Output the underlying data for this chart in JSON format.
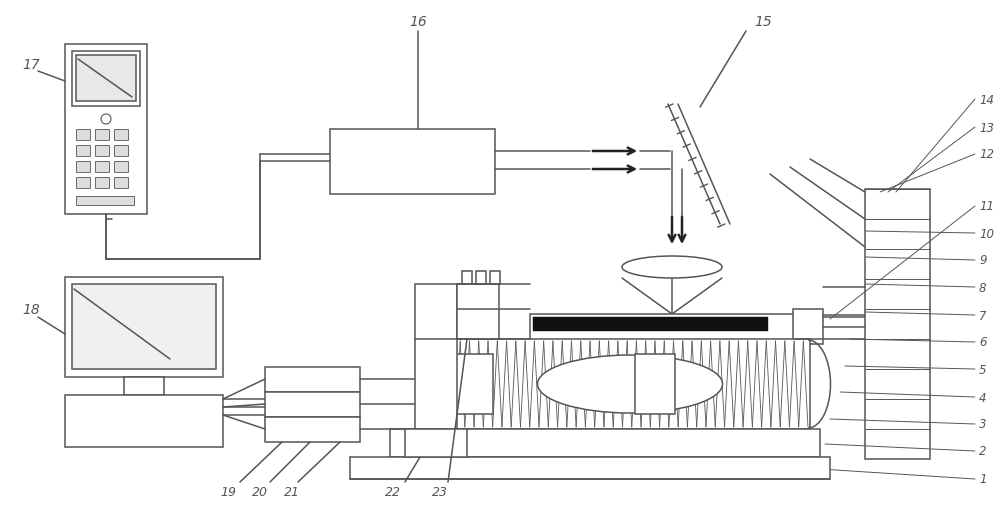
{
  "bg_color": "#ffffff",
  "lc": "#555555",
  "lw": 1.1,
  "figw": 10.0,
  "figh": 5.06,
  "right_labels": [
    [
      "1",
      0.945
    ],
    [
      "2",
      0.892
    ],
    [
      "3",
      0.84
    ],
    [
      "4",
      0.788
    ],
    [
      "5",
      0.736
    ],
    [
      "6",
      0.684
    ],
    [
      "7",
      0.632
    ],
    [
      "8",
      0.58
    ],
    [
      "9",
      0.528
    ],
    [
      "10",
      0.476
    ],
    [
      "11",
      0.424
    ],
    [
      "12",
      0.33
    ],
    [
      "13",
      0.29
    ],
    [
      "14",
      0.25
    ]
  ]
}
